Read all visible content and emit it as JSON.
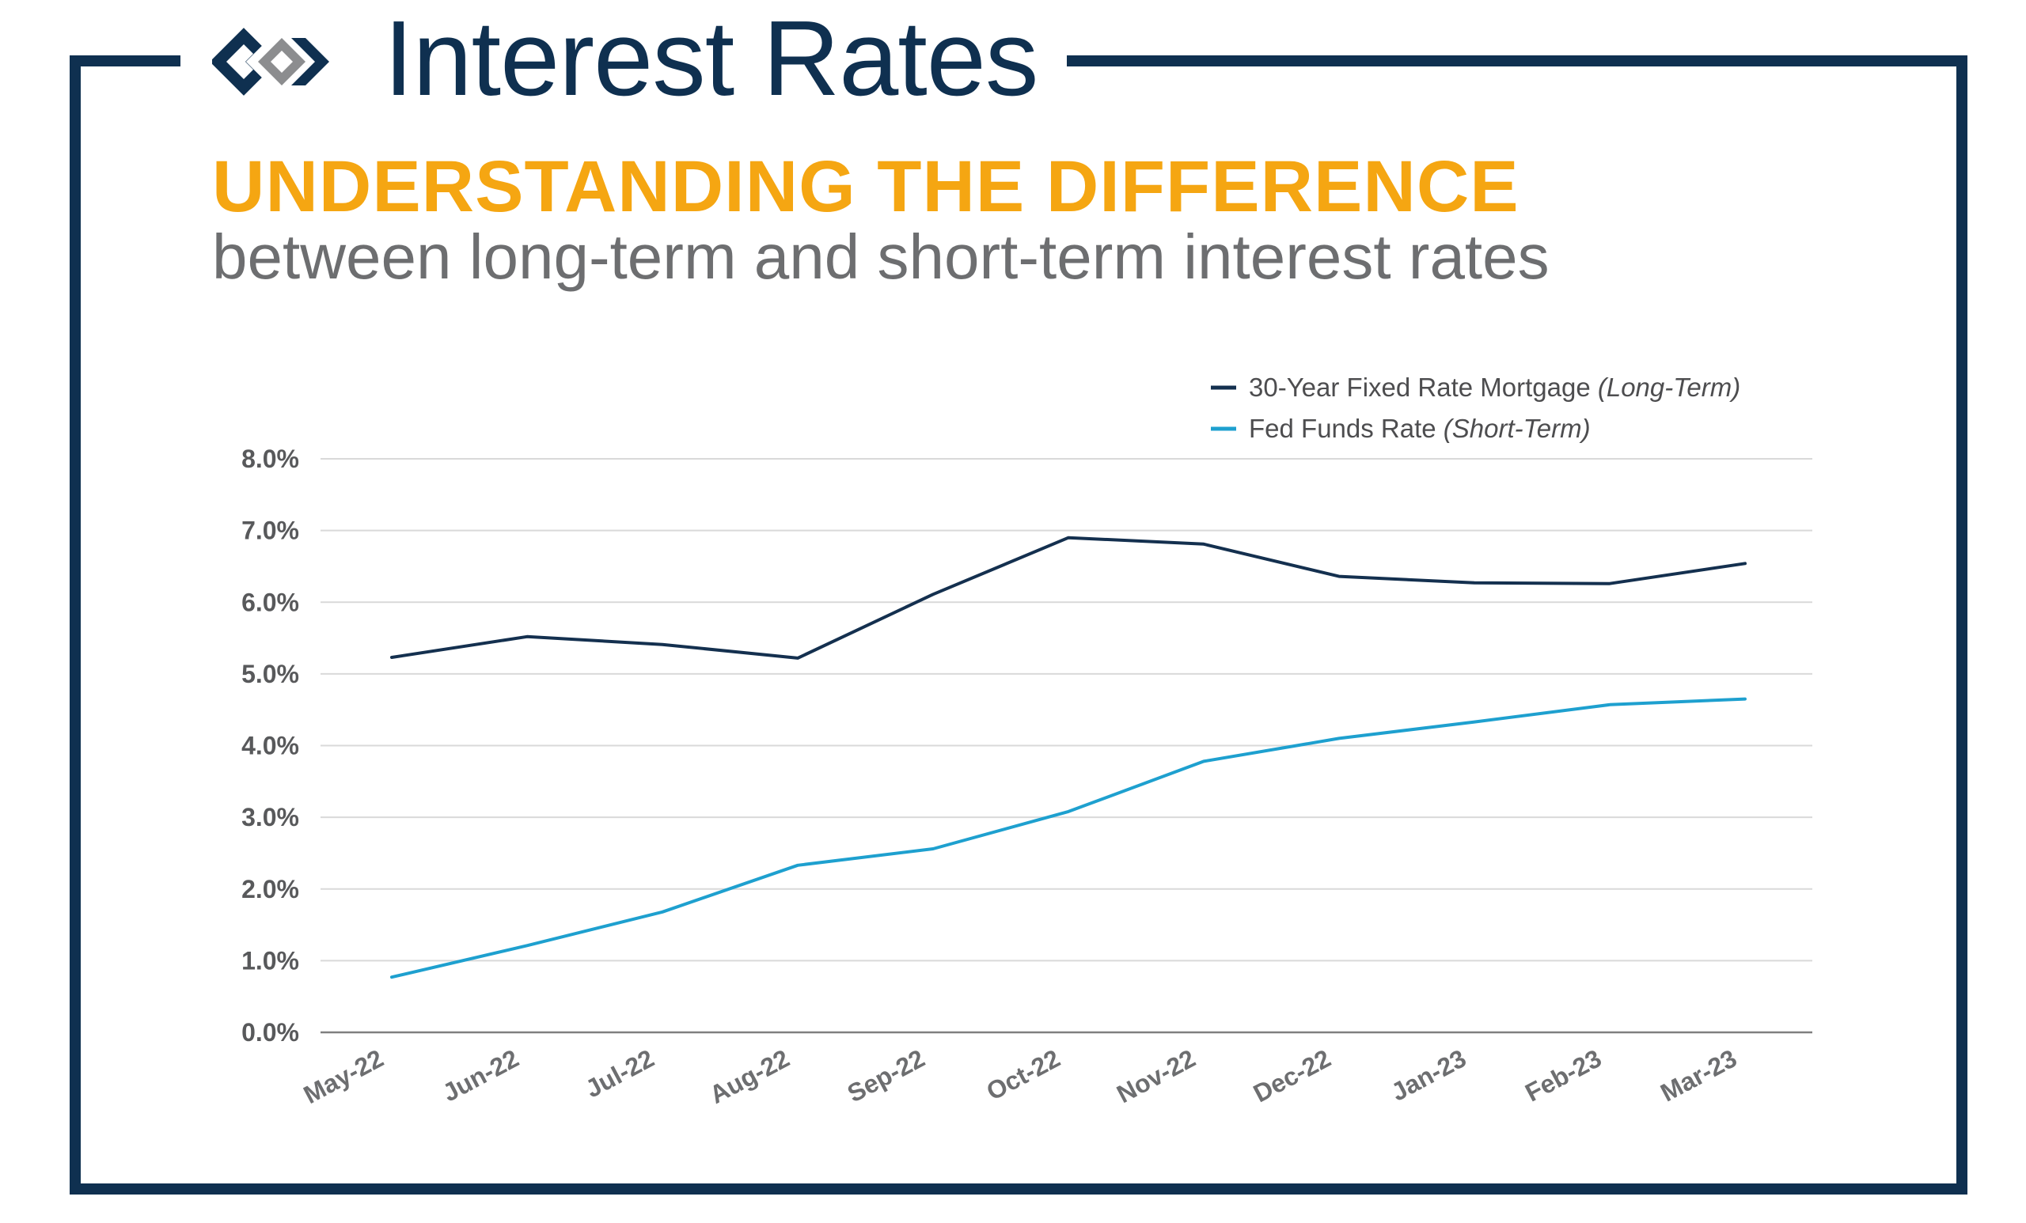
{
  "header": {
    "title": "Interest Rates",
    "headline": "UNDERSTANDING THE DIFFERENCE",
    "subheadline": "between long-term and short-term interest rates"
  },
  "colors": {
    "navy": "#0f3050",
    "orange": "#f5a612",
    "gray_text": "#6d6e70",
    "long_term_line": "#14304f",
    "short_term_line": "#1ea0cf",
    "grid": "#d9d9d9"
  },
  "chart_data": {
    "type": "line",
    "x": [
      "May-22",
      "Jun-22",
      "Jul-22",
      "Aug-22",
      "Sep-22",
      "Oct-22",
      "Nov-22",
      "Dec-22",
      "Jan-23",
      "Feb-23",
      "Mar-23"
    ],
    "ylim": [
      0,
      8
    ],
    "yticks": [
      "0.0%",
      "1.0%",
      "2.0%",
      "3.0%",
      "4.0%",
      "5.0%",
      "6.0%",
      "7.0%",
      "8.0%"
    ],
    "grid": true,
    "legend_position": "top-right",
    "series": [
      {
        "name": "30-Year Fixed Rate Mortgage",
        "qualifier": "(Long-Term)",
        "values": [
          5.23,
          5.52,
          5.41,
          5.22,
          6.11,
          6.9,
          6.81,
          6.36,
          6.27,
          6.26,
          6.54
        ]
      },
      {
        "name": "Fed Funds Rate",
        "qualifier": "(Short-Term)",
        "values": [
          0.77,
          1.21,
          1.68,
          2.33,
          2.56,
          3.08,
          3.78,
          4.1,
          4.33,
          4.57,
          4.65
        ]
      }
    ]
  }
}
